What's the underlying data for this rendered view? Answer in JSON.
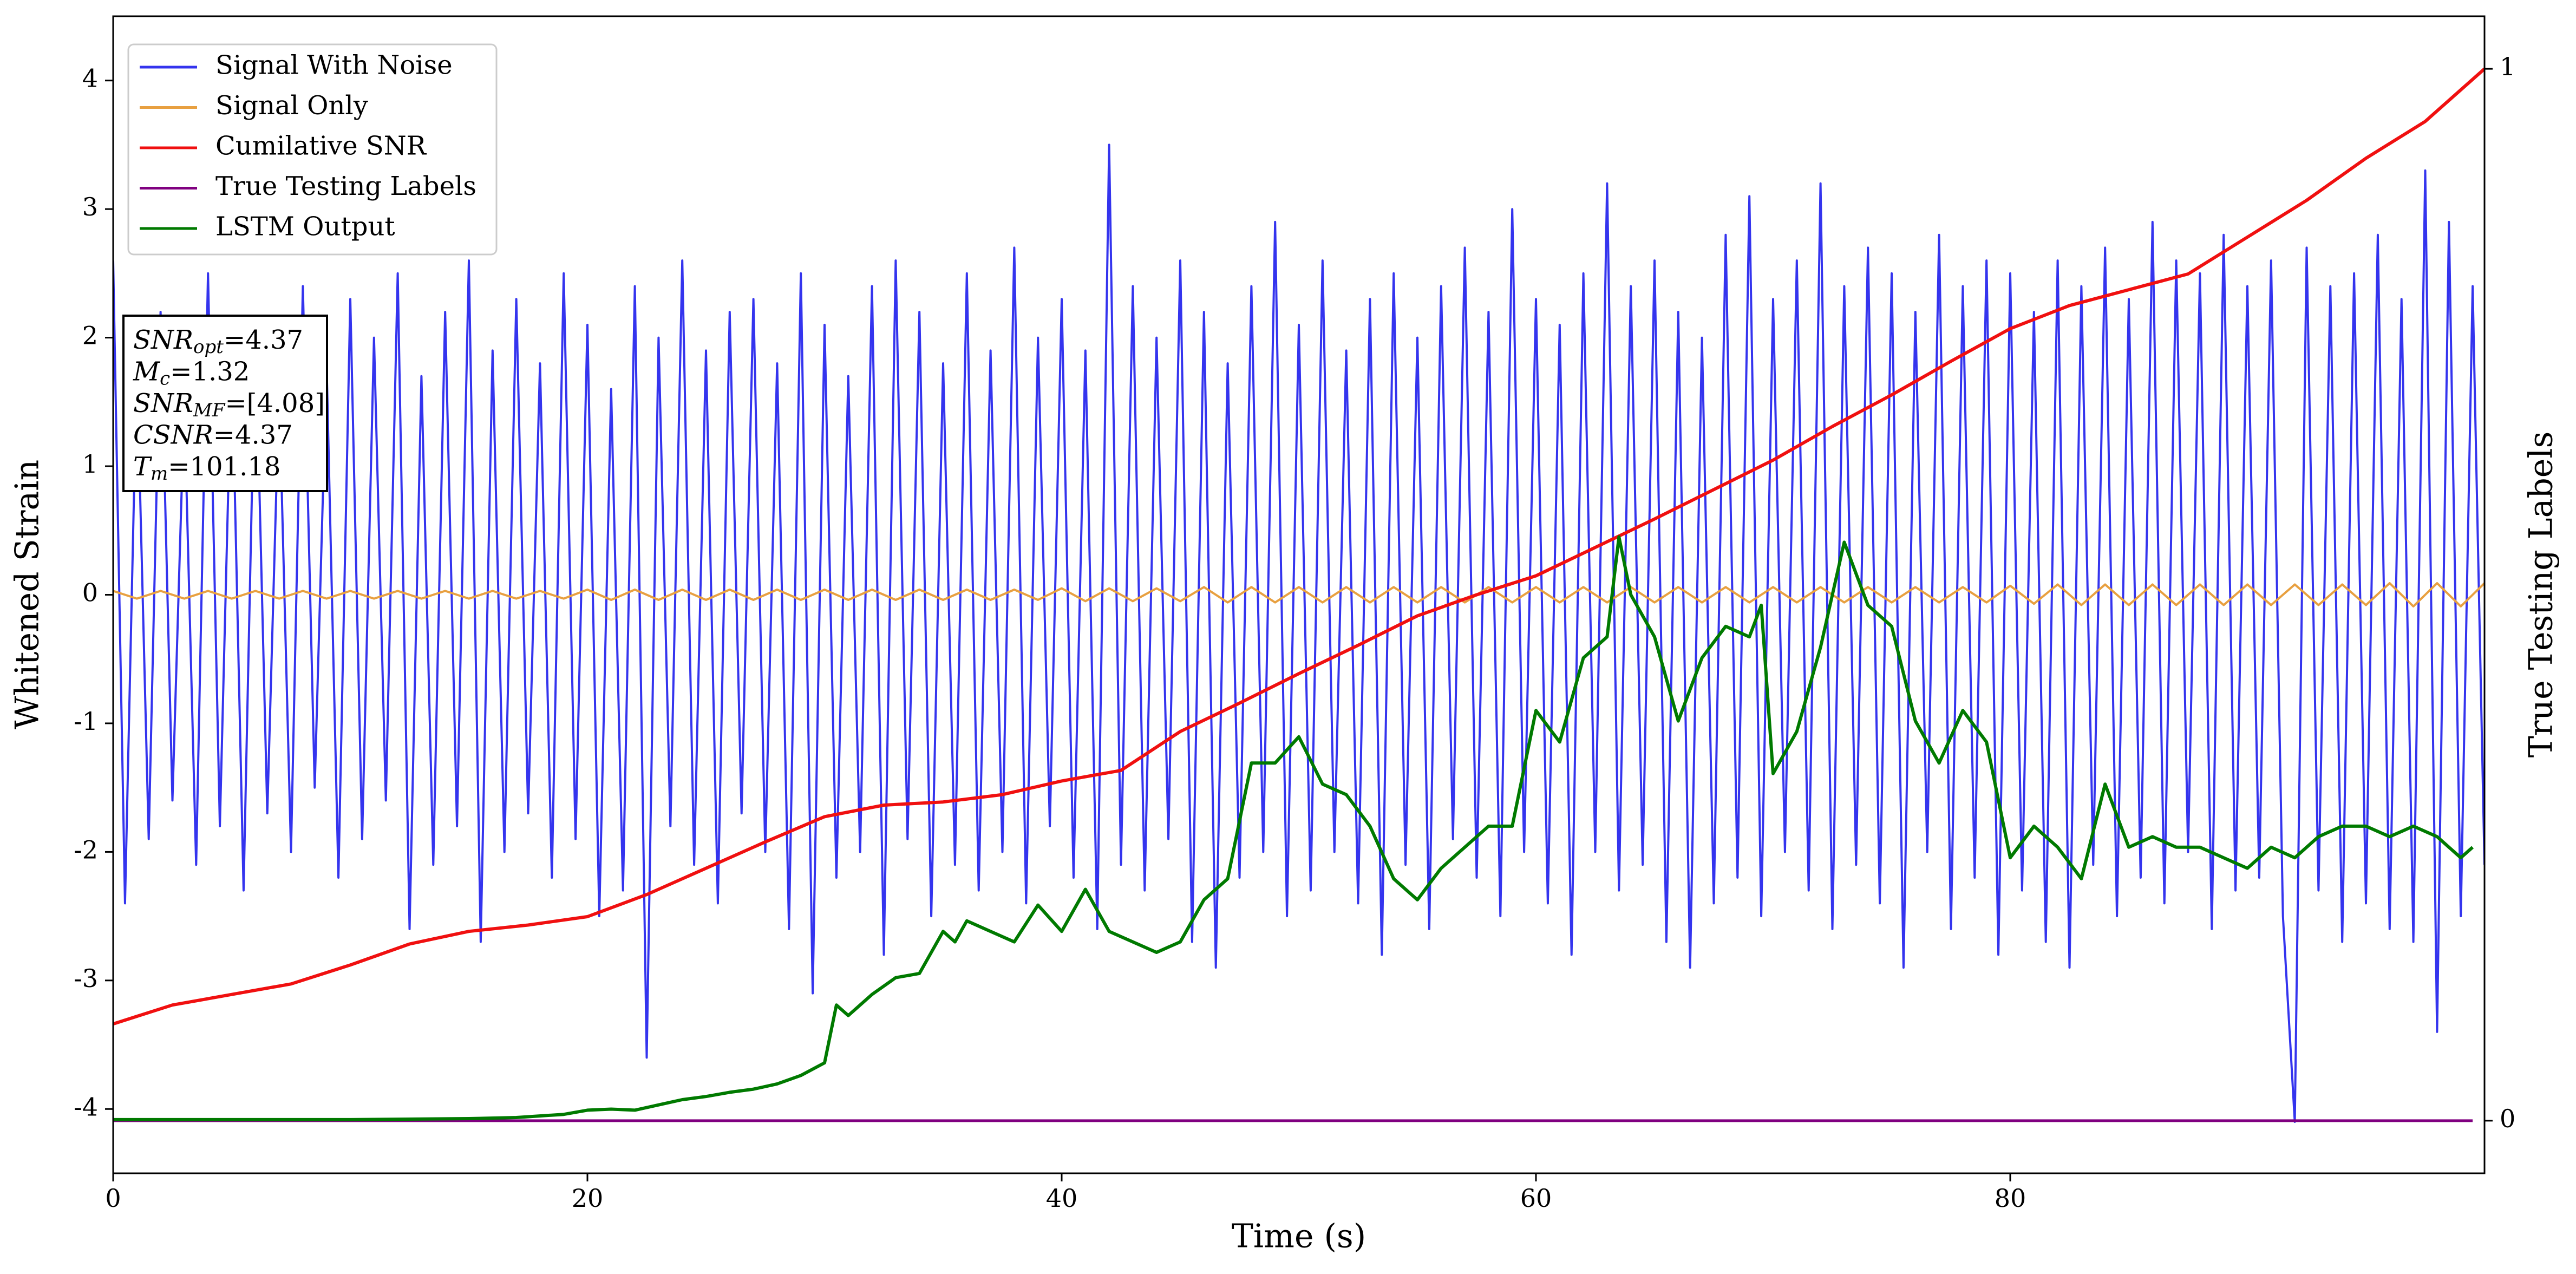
{
  "chart_data": {
    "type": "line",
    "xlabel": "Time (s)",
    "ylabel": "Whitened Strain",
    "y2label": "True Testing Labels",
    "xlim": [
      0,
      100
    ],
    "xticks": [
      0,
      20,
      40,
      60,
      80
    ],
    "ylim": [
      -4.5,
      4.5
    ],
    "yticks": [
      -4,
      -3,
      -2,
      -1,
      0,
      1,
      2,
      3,
      4
    ],
    "y2lim": [
      -0.05,
      1.05
    ],
    "y2ticks": [
      0,
      1
    ],
    "legend": "upper left",
    "series": [
      {
        "name": "Signal With Noise",
        "color": "#3434ee",
        "x": [
          0,
          0.5,
          1,
          1.5,
          2,
          2.5,
          3,
          3.5,
          4,
          4.5,
          5,
          5.5,
          6,
          6.5,
          7,
          7.5,
          8,
          8.5,
          9,
          9.5,
          10,
          10.5,
          11,
          11.5,
          12,
          12.5,
          13,
          13.5,
          14,
          14.5,
          15,
          15.5,
          16,
          16.5,
          17,
          17.5,
          18,
          18.5,
          19,
          19.5,
          20,
          20.5,
          21,
          21.5,
          22,
          22.5,
          23,
          23.5,
          24,
          24.5,
          25,
          25.5,
          26,
          26.5,
          27,
          27.5,
          28,
          28.5,
          29,
          29.5,
          30,
          30.5,
          31,
          31.5,
          32,
          32.5,
          33,
          33.5,
          34,
          34.5,
          35,
          35.5,
          36,
          36.5,
          37,
          37.5,
          38,
          38.5,
          39,
          39.5,
          40,
          40.5,
          41,
          41.5,
          42,
          42.5,
          43,
          43.5,
          44,
          44.5,
          45,
          45.5,
          46,
          46.5,
          47,
          47.5,
          48,
          48.5,
          49,
          49.5,
          50,
          50.5,
          51,
          51.5,
          52,
          52.5,
          53,
          53.5,
          54,
          54.5,
          55,
          55.5,
          56,
          56.5,
          57,
          57.5,
          58,
          58.5,
          59,
          59.5,
          60,
          60.5,
          61,
          61.5,
          62,
          62.5,
          63,
          63.5,
          64,
          64.5,
          65,
          65.5,
          66,
          66.5,
          67,
          67.5,
          68,
          68.5,
          69,
          69.5,
          70,
          70.5,
          71,
          71.5,
          72,
          72.5,
          73,
          73.5,
          74,
          74.5,
          75,
          75.5,
          76,
          76.5,
          77,
          77.5,
          78,
          78.5,
          79,
          79.5,
          80,
          80.5,
          81,
          81.5,
          82,
          82.5,
          83,
          83.5,
          84,
          84.5,
          85,
          85.5,
          86,
          86.5,
          87,
          87.5,
          88,
          88.5,
          89,
          89.5,
          90,
          90.5,
          91,
          91.5,
          92,
          92.5,
          93,
          93.5,
          94,
          94.5,
          95,
          95.5,
          96,
          96.5,
          97,
          97.5,
          98,
          98.5,
          99,
          99.5,
          100
        ],
        "values": [
          2.6,
          -2.4,
          1.8,
          -1.9,
          2.2,
          -1.6,
          1.5,
          -2.1,
          2.5,
          -1.8,
          1.9,
          -2.3,
          2.1,
          -1.7,
          1.6,
          -2.0,
          2.4,
          -1.5,
          1.8,
          -2.2,
          2.3,
          -1.9,
          2.0,
          -1.6,
          2.5,
          -2.6,
          1.7,
          -2.1,
          2.2,
          -1.8,
          2.6,
          -2.7,
          1.9,
          -2.0,
          2.3,
          -1.7,
          1.8,
          -2.2,
          2.5,
          -1.9,
          2.1,
          -2.5,
          1.6,
          -2.3,
          2.4,
          -3.6,
          2.0,
          -1.8,
          2.6,
          -2.1,
          1.9,
          -2.4,
          2.2,
          -1.7,
          2.3,
          -2.0,
          1.8,
          -2.6,
          2.5,
          -3.1,
          2.1,
          -2.2,
          1.7,
          -2.0,
          2.4,
          -2.8,
          2.6,
          -1.9,
          2.2,
          -2.5,
          1.8,
          -2.1,
          2.5,
          -2.3,
          1.9,
          -2.0,
          2.7,
          -2.4,
          2.0,
          -1.8,
          2.3,
          -2.2,
          1.9,
          -2.6,
          3.5,
          -2.1,
          2.4,
          -2.3,
          2.0,
          -1.9,
          2.6,
          -2.7,
          2.2,
          -2.9,
          1.8,
          -2.2,
          2.4,
          -2.0,
          2.9,
          -2.5,
          2.1,
          -2.3,
          2.6,
          -2.0,
          1.9,
          -2.4,
          2.3,
          -2.8,
          2.5,
          -2.1,
          2.0,
          -2.6,
          2.4,
          -1.9,
          2.7,
          -2.2,
          2.2,
          -2.5,
          3.0,
          -2.0,
          2.3,
          -2.4,
          2.1,
          -2.8,
          2.5,
          -2.0,
          3.2,
          -2.3,
          2.4,
          -2.1,
          2.6,
          -2.7,
          2.2,
          -2.9,
          2.0,
          -2.4,
          2.8,
          -2.2,
          3.1,
          -2.5,
          2.3,
          -2.0,
          2.6,
          -2.3,
          3.2,
          -2.6,
          2.4,
          -2.1,
          2.7,
          -2.4,
          2.5,
          -2.9,
          2.2,
          -2.0,
          2.8,
          -2.6,
          2.4,
          -2.2,
          2.6,
          -2.8,
          2.5,
          -2.3,
          2.2,
          -2.7,
          2.6,
          -2.9,
          2.4,
          -2.1,
          2.7,
          -2.5,
          2.3,
          -2.2,
          2.9,
          -2.4,
          2.6,
          -2.0,
          2.5,
          -2.6,
          2.8,
          -2.3,
          2.4,
          -2.2,
          2.6,
          -2.5,
          -4.1,
          2.7,
          -2.3,
          2.4,
          -2.7,
          2.5,
          -2.4,
          2.8,
          -2.6,
          2.3,
          -2.7,
          3.3,
          -3.4,
          2.9,
          -2.5,
          2.4,
          -2.1
        ]
      },
      {
        "name": "Signal Only",
        "color": "#e8a040",
        "x": [
          0,
          1,
          2,
          3,
          4,
          5,
          6,
          7,
          8,
          9,
          10,
          11,
          12,
          13,
          14,
          15,
          16,
          17,
          18,
          19,
          20,
          21,
          22,
          23,
          24,
          25,
          26,
          27,
          28,
          29,
          30,
          31,
          32,
          33,
          34,
          35,
          36,
          37,
          38,
          39,
          40,
          41,
          42,
          43,
          44,
          45,
          46,
          47,
          48,
          49,
          50,
          51,
          52,
          53,
          54,
          55,
          56,
          57,
          58,
          59,
          60,
          61,
          62,
          63,
          64,
          65,
          66,
          67,
          68,
          69,
          70,
          71,
          72,
          73,
          74,
          75,
          76,
          77,
          78,
          79,
          80,
          81,
          82,
          83,
          84,
          85,
          86,
          87,
          88,
          89,
          90,
          91,
          92,
          93,
          94,
          95,
          96,
          97,
          98,
          99,
          100
        ],
        "values": [
          0.03,
          -0.03,
          0.03,
          -0.03,
          0.03,
          -0.03,
          0.03,
          -0.03,
          0.03,
          -0.03,
          0.03,
          -0.03,
          0.03,
          -0.03,
          0.03,
          -0.03,
          0.03,
          -0.03,
          0.03,
          -0.03,
          0.04,
          -0.04,
          0.04,
          -0.04,
          0.04,
          -0.04,
          0.04,
          -0.04,
          0.04,
          -0.04,
          0.04,
          -0.04,
          0.04,
          -0.04,
          0.04,
          -0.04,
          0.04,
          -0.04,
          0.04,
          -0.04,
          0.05,
          -0.05,
          0.05,
          -0.05,
          0.05,
          -0.05,
          0.06,
          -0.06,
          0.06,
          -0.06,
          0.06,
          -0.06,
          0.06,
          -0.06,
          0.06,
          -0.06,
          0.06,
          -0.06,
          0.06,
          -0.06,
          0.06,
          -0.06,
          0.06,
          -0.06,
          0.06,
          -0.06,
          0.06,
          -0.06,
          0.06,
          -0.06,
          0.06,
          -0.06,
          0.06,
          -0.06,
          0.06,
          -0.06,
          0.06,
          -0.06,
          0.06,
          -0.06,
          0.07,
          -0.07,
          0.08,
          -0.08,
          0.08,
          -0.08,
          0.08,
          -0.08,
          0.08,
          -0.08,
          0.08,
          -0.08,
          0.08,
          -0.08,
          0.08,
          -0.08,
          0.09,
          -0.09,
          0.09,
          -0.09,
          0.09
        ]
      },
      {
        "name": "Cumilative SNR",
        "color": "#f01010",
        "axis": "y2",
        "x": [
          0,
          2.5,
          5,
          7.5,
          10,
          12.5,
          15,
          17.5,
          20,
          22.5,
          25,
          27.5,
          30,
          32.5,
          35,
          37.5,
          40,
          42.5,
          45,
          47.5,
          50,
          52.5,
          55,
          57.5,
          60,
          62.5,
          65,
          67.5,
          70,
          72.5,
          75,
          77.5,
          80,
          82.5,
          85,
          87.5,
          90,
          92.5,
          95,
          97.5,
          100
        ],
        "values": [
          0.092,
          0.11,
          0.12,
          0.13,
          0.148,
          0.168,
          0.18,
          0.186,
          0.194,
          0.215,
          0.24,
          0.265,
          0.289,
          0.3,
          0.303,
          0.31,
          0.323,
          0.333,
          0.37,
          0.397,
          0.425,
          0.452,
          0.48,
          0.5,
          0.518,
          0.545,
          0.572,
          0.6,
          0.628,
          0.66,
          0.69,
          0.722,
          0.753,
          0.775,
          0.79,
          0.805,
          0.84,
          0.875,
          0.915,
          0.95,
          1.0
        ]
      },
      {
        "name": "True Testing Labels",
        "color": "#800080",
        "axis": "y2",
        "x": [
          0,
          99.5
        ],
        "values": [
          0,
          0
        ]
      },
      {
        "name": "LSTM Output",
        "color": "#007a00",
        "axis": "y2",
        "x": [
          0,
          5,
          10,
          15,
          17,
          19,
          20,
          21,
          22,
          23,
          24,
          25,
          26,
          27,
          28,
          29,
          30,
          30.5,
          31,
          32,
          33,
          34,
          35,
          35.5,
          36,
          37,
          38,
          39,
          40,
          41,
          42,
          43,
          44,
          45,
          46,
          47,
          48,
          49,
          50,
          51,
          52,
          53,
          54,
          55,
          56,
          57,
          58,
          59,
          60,
          61,
          62,
          63,
          63.5,
          64,
          65,
          66,
          67,
          68,
          69,
          69.5,
          70,
          71,
          72,
          73,
          74,
          75,
          76,
          77,
          78,
          79,
          80,
          81,
          82,
          83,
          84,
          85,
          86,
          87,
          88,
          89,
          90,
          91,
          92,
          93,
          94,
          95,
          96,
          97,
          98,
          99,
          99.5
        ],
        "values": [
          0.001,
          0.001,
          0.001,
          0.002,
          0.003,
          0.006,
          0.01,
          0.011,
          0.01,
          0.015,
          0.02,
          0.023,
          0.027,
          0.03,
          0.035,
          0.043,
          0.055,
          0.11,
          0.1,
          0.12,
          0.136,
          0.14,
          0.18,
          0.17,
          0.19,
          0.18,
          0.17,
          0.205,
          0.18,
          0.22,
          0.18,
          0.17,
          0.16,
          0.17,
          0.21,
          0.23,
          0.34,
          0.34,
          0.365,
          0.32,
          0.31,
          0.28,
          0.23,
          0.21,
          0.24,
          0.26,
          0.28,
          0.28,
          0.39,
          0.36,
          0.44,
          0.46,
          0.555,
          0.5,
          0.46,
          0.38,
          0.44,
          0.47,
          0.46,
          0.49,
          0.33,
          0.37,
          0.45,
          0.55,
          0.49,
          0.47,
          0.38,
          0.34,
          0.39,
          0.36,
          0.25,
          0.28,
          0.26,
          0.23,
          0.32,
          0.26,
          0.27,
          0.26,
          0.26,
          0.25,
          0.24,
          0.26,
          0.25,
          0.27,
          0.28,
          0.28,
          0.27,
          0.28,
          0.27,
          0.25,
          0.26
        ]
      }
    ],
    "annotation": [
      {
        "text": "SNR",
        "sub": "opt",
        "value": "=4.37"
      },
      {
        "text": "M",
        "sub": "c",
        "value": "=1.32"
      },
      {
        "text": "SNR",
        "sub": "MF",
        "value": "=[4.08]"
      },
      {
        "text": "CSNR",
        "value": "=4.37"
      },
      {
        "text": "T",
        "sub": "m",
        "value": "=101.18"
      }
    ]
  }
}
